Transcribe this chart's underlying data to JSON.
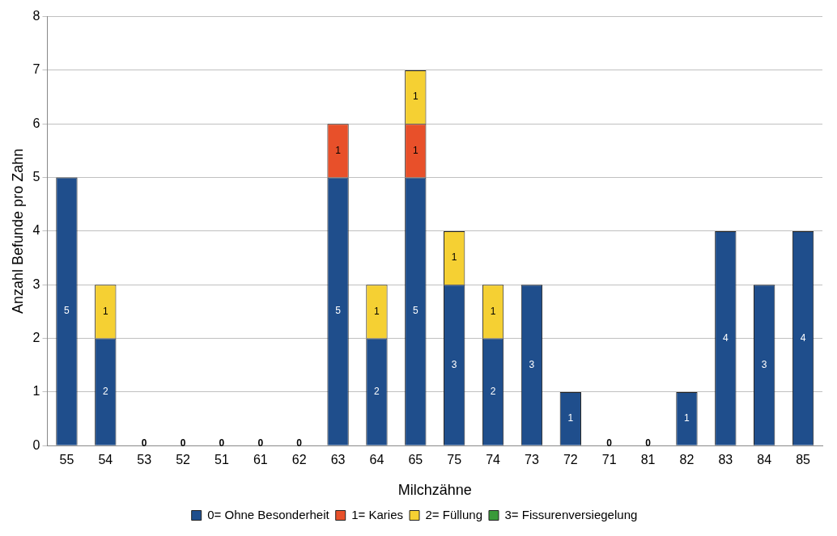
{
  "chart_data": {
    "type": "bar",
    "stacked": true,
    "xlabel": "Milchzähne",
    "ylabel": "Anzahl Befunde pro Zahn",
    "categories": [
      "55",
      "54",
      "53",
      "52",
      "51",
      "61",
      "62",
      "63",
      "64",
      "65",
      "75",
      "74",
      "73",
      "72",
      "71",
      "81",
      "82",
      "83",
      "84",
      "85"
    ],
    "series": [
      {
        "name": "0= Ohne Besonderheit",
        "color": "#1f4e8c",
        "values": [
          5,
          2,
          0,
          0,
          0,
          0,
          0,
          5,
          2,
          5,
          3,
          2,
          3,
          1,
          0,
          0,
          1,
          4,
          3,
          4
        ],
        "value_labels": [
          "5",
          "2",
          "0",
          "0",
          "0",
          "0",
          "0",
          "5",
          "2",
          "5",
          "3",
          "2",
          "3",
          "1",
          "0",
          "0",
          "1",
          "4",
          "3",
          "4"
        ]
      },
      {
        "name": "1= Karies",
        "color": "#e8502a",
        "values": [
          0,
          0,
          0,
          0,
          0,
          0,
          0,
          1,
          0,
          1,
          0,
          0,
          0,
          0,
          0,
          0,
          0,
          0,
          0,
          0
        ],
        "value_labels": [
          null,
          null,
          null,
          null,
          null,
          null,
          null,
          "1",
          null,
          "1",
          null,
          null,
          null,
          null,
          null,
          null,
          null,
          null,
          null,
          null
        ]
      },
      {
        "name": "2= Füllung",
        "color": "#f5d033",
        "values": [
          0,
          1,
          0,
          0,
          0,
          0,
          0,
          0,
          1,
          1,
          1,
          1,
          0,
          0,
          0,
          0,
          0,
          0,
          0,
          0
        ],
        "value_labels": [
          null,
          "1",
          null,
          null,
          null,
          null,
          null,
          null,
          "1",
          "1",
          "1",
          "1",
          null,
          null,
          null,
          null,
          null,
          null,
          null,
          null
        ]
      },
      {
        "name": "3= Fissurenversiegelung",
        "color": "#3a9a3a",
        "values": [
          0,
          0,
          0,
          0,
          0,
          0,
          0,
          0,
          0,
          0,
          0,
          0,
          0,
          0,
          0,
          0,
          0,
          0,
          0,
          0
        ]
      }
    ],
    "ylim": [
      0,
      8
    ],
    "yticks": [
      0,
      1,
      2,
      3,
      4,
      5,
      6,
      7,
      8
    ],
    "grid": "y",
    "legend": "bottom"
  }
}
